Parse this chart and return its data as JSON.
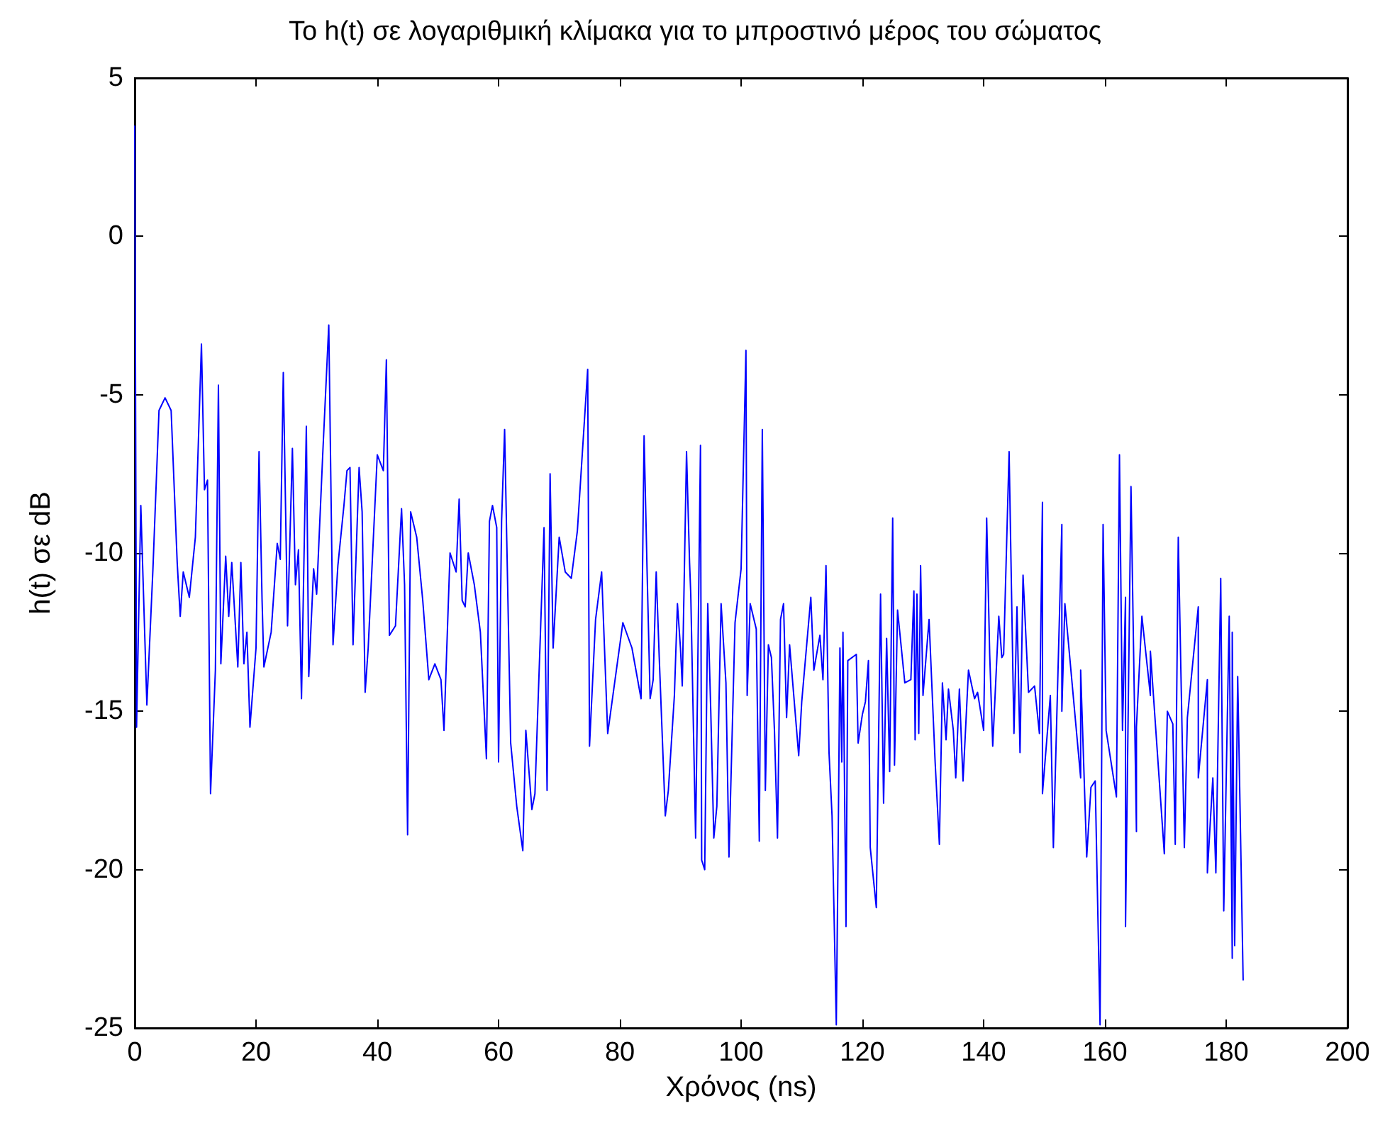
{
  "chart_data": {
    "type": "line",
    "title": "Το h(t) σε λογαριθμική κλίμακα για το μπροστινό μέρος του σώματος",
    "xlabel": "Χρόνος (ns)",
    "ylabel": "h(t) σε dB",
    "xlim": [
      0,
      200
    ],
    "xticks": [
      0,
      20,
      40,
      60,
      80,
      100,
      120,
      140,
      160,
      180,
      200
    ],
    "ylim": [
      -25,
      5
    ],
    "yticks": [
      -25,
      -20,
      -15,
      -10,
      -5,
      0,
      5
    ],
    "grid": false,
    "marker": "none",
    "line_style": "solid",
    "series": [
      {
        "color": "#0000ff",
        "x": [
          0,
          0.3,
          1,
          2,
          3,
          4,
          5,
          6,
          7,
          7.5,
          8,
          9,
          10,
          11,
          11.5,
          12,
          12.5,
          13.3,
          13.8,
          14.2,
          15,
          15.5,
          16,
          17,
          17.5,
          18,
          18.5,
          19,
          20,
          20.5,
          21,
          21.3,
          22.5,
          23.5,
          24,
          24.5,
          25.2,
          26,
          26.5,
          27,
          27.5,
          28.3,
          28.7,
          29.5,
          30,
          31,
          32,
          32.7,
          33.5,
          34.5,
          35,
          35.5,
          36,
          37,
          37.5,
          38,
          38.5,
          40,
          41,
          41.5,
          42,
          43,
          44,
          44.5,
          45,
          45.5,
          46.5,
          47.5,
          48.5,
          49.5,
          50.5,
          51,
          52,
          53,
          53.5,
          54,
          54.5,
          55,
          56,
          57,
          58,
          58.5,
          59,
          59.7,
          60,
          60.5,
          61,
          62,
          63,
          64,
          64.5,
          65.5,
          66,
          67.5,
          68,
          68.5,
          69,
          70,
          71,
          72,
          73,
          74.7,
          75,
          76,
          77,
          78,
          79,
          80.5,
          82,
          83.5,
          84,
          84.5,
          85,
          85.5,
          86,
          86.5,
          87.5,
          88,
          88.5,
          89,
          89.5,
          90,
          90.3,
          91,
          91.5,
          91.7,
          92.5,
          92.8,
          93.3,
          93.5,
          94,
          94.5,
          95,
          95.5,
          96,
          96.7,
          97.5,
          98,
          99,
          100,
          100.8,
          101,
          101.5,
          102.5,
          103,
          103.5,
          104,
          104.5,
          105,
          105.5,
          106,
          106.5,
          107,
          107.5,
          108,
          109.5,
          110,
          111.5,
          112,
          113,
          113.5,
          114,
          114.5,
          115,
          115.7,
          116,
          116.3,
          116.6,
          116.8,
          117.3,
          117.6,
          119,
          119.3,
          120,
          120.5,
          121,
          121.3,
          122.3,
          123,
          123.5,
          124,
          124.5,
          125,
          125.3,
          125.8,
          127,
          128,
          128.5,
          128.7,
          129,
          129.3,
          129.6,
          130,
          131,
          132,
          132.7,
          133.2,
          133.8,
          134.2,
          135,
          135.4,
          136,
          136.6,
          137.5,
          138.5,
          139,
          140,
          140.5,
          141,
          141.5,
          142.5,
          143,
          143.3,
          144.2,
          145,
          145.5,
          146,
          146.5,
          147.4,
          148.4,
          149.2,
          149.7,
          149.7,
          151,
          151.5,
          152.9,
          152.9,
          153.4,
          156,
          156,
          157,
          157.7,
          158.4,
          159.2,
          159.7,
          160.2,
          161.9,
          162.4,
          162.9,
          163.4,
          163.4,
          164.3,
          165.2,
          165.2,
          166.1,
          167.5,
          167.5,
          169.8,
          170.3,
          171.2,
          171.6,
          172.1,
          173.1,
          173.6,
          175.4,
          175.4,
          176.9,
          176.9,
          177.8,
          178.3,
          179.1,
          179.6,
          180.5,
          181,
          181,
          181.4,
          181.9,
          182.8
        ],
        "values": [
          3.5,
          -15.5,
          -8.5,
          -14.8,
          -10.5,
          -5.5,
          -5.1,
          -5.5,
          -10.3,
          -12,
          -10.6,
          -11.4,
          -9.5,
          -3.4,
          -8,
          -7.7,
          -17.6,
          -13.7,
          -4.7,
          -13.5,
          -10.1,
          -12,
          -10.3,
          -13.6,
          -10.3,
          -13.5,
          -12.5,
          -15.5,
          -13,
          -6.8,
          -11.5,
          -13.6,
          -12.5,
          -9.7,
          -10.2,
          -4.3,
          -12.3,
          -6.7,
          -11,
          -9.9,
          -14.6,
          -6,
          -13.9,
          -10.5,
          -11.3,
          -6.9,
          -2.8,
          -12.9,
          -10.4,
          -8.5,
          -7.4,
          -7.3,
          -12.9,
          -7.3,
          -8.7,
          -14.4,
          -13,
          -6.9,
          -7.4,
          -3.9,
          -12.6,
          -12.3,
          -8.6,
          -11,
          -18.9,
          -8.7,
          -9.5,
          -11.5,
          -14,
          -13.5,
          -14,
          -15.6,
          -10,
          -10.6,
          -8.3,
          -11.5,
          -11.7,
          -10,
          -11,
          -12.5,
          -16.5,
          -9,
          -8.5,
          -9.2,
          -16.6,
          -9,
          -6.1,
          -16,
          -18,
          -19.4,
          -15.6,
          -18.1,
          -17.6,
          -9.2,
          -17.5,
          -7.5,
          -13,
          -9.5,
          -10.6,
          -10.8,
          -9.3,
          -4.2,
          -16.1,
          -12.1,
          -10.6,
          -15.7,
          -14.3,
          -12.2,
          -13,
          -14.6,
          -6.3,
          -10.6,
          -14.6,
          -14,
          -10.6,
          -13.3,
          -18.3,
          -17.5,
          -16,
          -14.5,
          -11.6,
          -13,
          -14.2,
          -6.8,
          -10.3,
          -11.3,
          -19,
          -14.5,
          -6.6,
          -19.7,
          -20,
          -11.6,
          -15,
          -19,
          -18,
          -11.6,
          -14.1,
          -19.6,
          -12.2,
          -10.5,
          -3.6,
          -14.5,
          -11.6,
          -12.4,
          -19.1,
          -6.1,
          -17.5,
          -12.9,
          -13.3,
          -15.6,
          -19,
          -12.1,
          -11.6,
          -15.2,
          -12.9,
          -16.4,
          -14.7,
          -11.4,
          -13.7,
          -12.6,
          -14,
          -10.4,
          -16.3,
          -18.3,
          -24.9,
          -19.4,
          -13,
          -16.6,
          -12.5,
          -21.8,
          -13.4,
          -13.2,
          -16,
          -15.1,
          -14.7,
          -13.4,
          -19.3,
          -21.2,
          -11.3,
          -17.9,
          -12.7,
          -16.9,
          -8.9,
          -16.7,
          -11.8,
          -14.1,
          -14,
          -11.2,
          -15.9,
          -11.3,
          -15.7,
          -10.4,
          -14.5,
          -12.1,
          -16.6,
          -19.2,
          -14.1,
          -15.9,
          -14.3,
          -15.6,
          -17.1,
          -14.3,
          -17.2,
          -13.7,
          -14.6,
          -14.4,
          -15.6,
          -8.9,
          -13.2,
          -16.1,
          -12,
          -13.3,
          -13.2,
          -6.8,
          -15.7,
          -11.7,
          -16.3,
          -10.7,
          -14.4,
          -14.2,
          -15.7,
          -8.4,
          -17.6,
          -14.5,
          -19.3,
          -9.1,
          -15,
          -11.6,
          -17.1,
          -13.7,
          -19.6,
          -17.4,
          -17.2,
          -24.9,
          -9.1,
          -15.6,
          -17.7,
          -6.9,
          -15.6,
          -11.4,
          -21.8,
          -7.9,
          -18.8,
          -15.5,
          -12,
          -14.5,
          -13.1,
          -19.5,
          -15,
          -15.4,
          -19.2,
          -9.5,
          -19.3,
          -15.2,
          -11.7,
          -17.1,
          -14,
          -20.1,
          -17.1,
          -20.1,
          -10.8,
          -21.3,
          -12,
          -22.8,
          -12.5,
          -22.4,
          -13.9,
          -23.5
        ]
      }
    ]
  }
}
